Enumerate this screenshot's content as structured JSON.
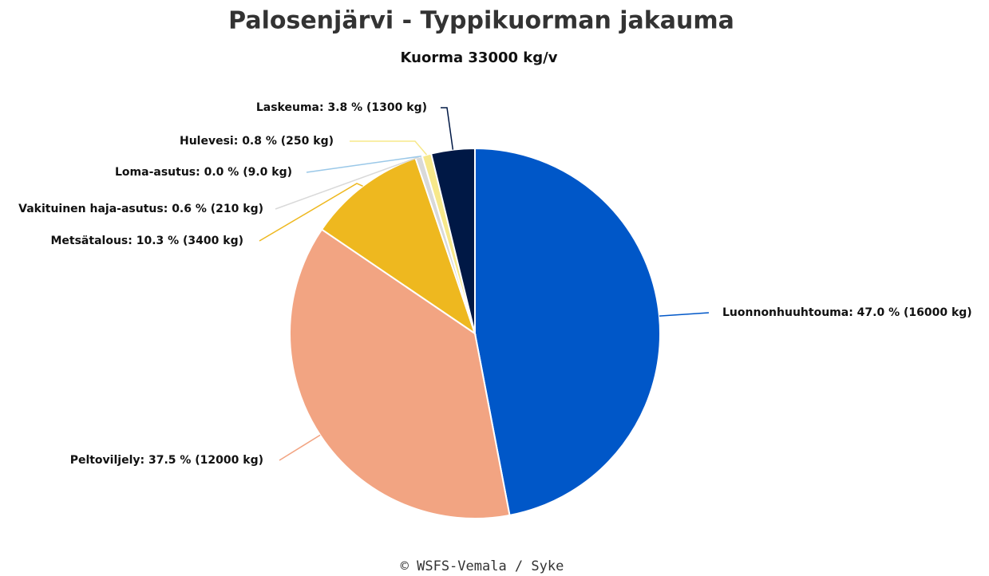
{
  "chart_data": {
    "type": "pie",
    "title": "Palosenjärvi - Typpikuorman jakauma",
    "subtitle": "Kuorma 33000 kg/v",
    "categories": [
      "Luonnonhuuhtouma",
      "Peltoviljely",
      "Metsätalous",
      "Vakituinen haja-asutus",
      "Loma-asutus",
      "Hulevesi",
      "Laskeuma"
    ],
    "values": [
      47.0,
      37.5,
      10.3,
      0.6,
      0.0,
      0.8,
      3.8
    ],
    "value_labels": [
      "Luonnonhuuhtouma: 47.0 % (16000 kg)",
      "Peltoviljely: 37.5 % (12000 kg)",
      "Metsätalous: 10.3 % (3400 kg)",
      "Vakituinen haja-asutus: 0.6 % (210 kg)",
      "Loma-asutus: 0.0 % (9.0 kg)",
      "Hulevesi: 0.8 % (250 kg)",
      "Laskeuma: 3.8 % (1300 kg)"
    ],
    "colors": [
      "#0057c8",
      "#f2a482",
      "#eeb81f",
      "#d9d9d9",
      "#9ac8e8",
      "#f7e88a",
      "#001845"
    ],
    "credit": "© WSFS-Vemala / Syke"
  }
}
